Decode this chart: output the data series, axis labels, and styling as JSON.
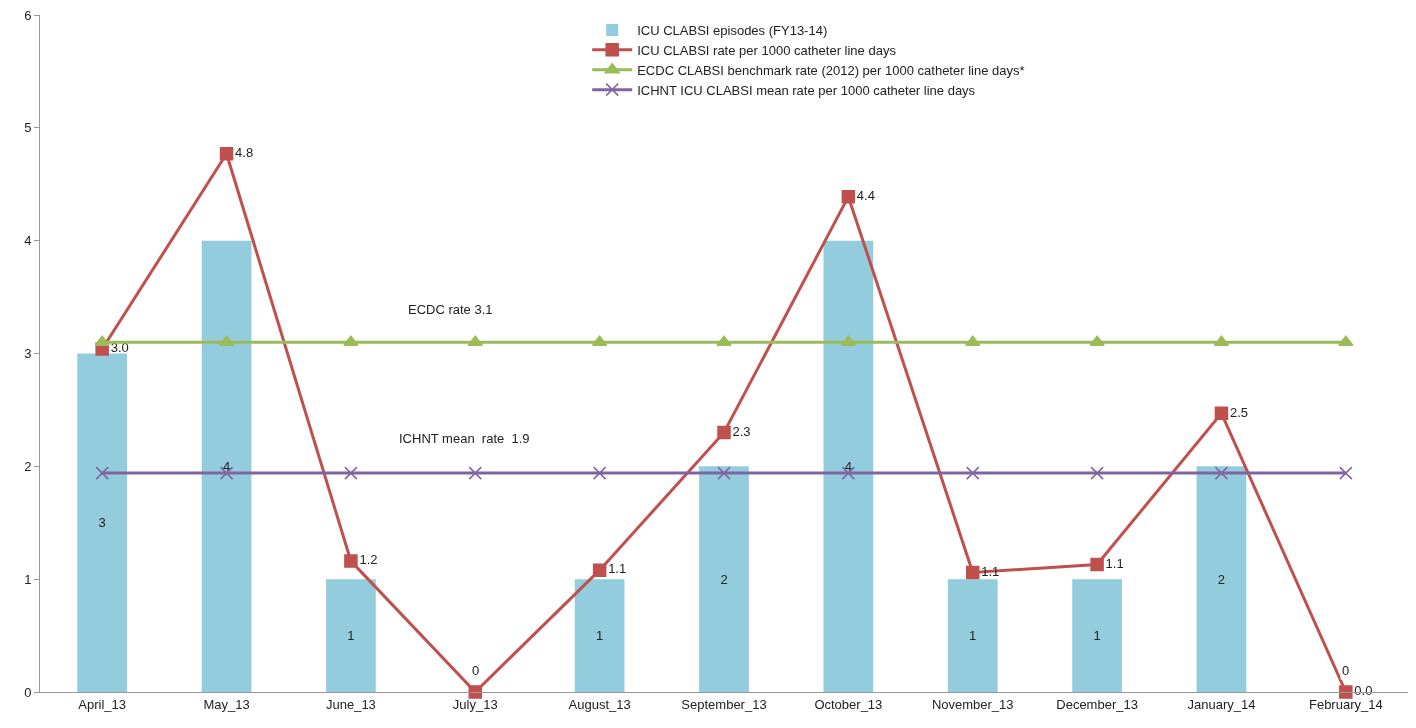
{
  "chart_data": {
    "type": "bar",
    "categories": [
      "April_13",
      "May_13",
      "June_13",
      "July_13",
      "August_13",
      "September_13",
      "October_13",
      "November_13",
      "December_13",
      "January_14",
      "February_14"
    ],
    "series": [
      {
        "name": "ICU CLABSI episodes (FY13-14)",
        "color": "#93cddd",
        "values": [
          3,
          4,
          1,
          0,
          1,
          2,
          4,
          1,
          1,
          2,
          0
        ],
        "value_labels": [
          "3",
          "4",
          "1",
          "0",
          "1",
          "2",
          "4",
          "1",
          "1",
          "2",
          "0"
        ]
      },
      {
        "name": "ICU CLABSI rate per 1000 catheter line days",
        "type": "line",
        "color": "#c0504d",
        "marker": "square",
        "values": [
          3.04,
          4.77,
          1.16,
          0,
          1.08,
          2.3,
          4.39,
          1.06,
          1.13,
          2.47,
          0
        ],
        "value_labels": [
          "3.0",
          "4.8",
          "1.2",
          null,
          "1.1",
          "2.3",
          "4.4",
          "1.1",
          "1.1",
          "2.5",
          "0.0"
        ]
      },
      {
        "name": "ECDC CLABSI benchmark rate (2012) per 1000 catheter line days*",
        "type": "line",
        "color": "#9bbb59",
        "marker": "triangle",
        "values": [
          3.1,
          3.1,
          3.1,
          3.1,
          3.1,
          3.1,
          3.1,
          3.1,
          3.1,
          3.1,
          3.1
        ]
      },
      {
        "name": "ICHNT ICU CLABSI mean rate per 1000 catheter line days",
        "type": "line",
        "color": "#8064a2",
        "marker": "cross",
        "values": [
          1.94,
          1.94,
          1.94,
          1.94,
          1.94,
          1.94,
          1.94,
          1.94,
          1.94,
          1.94,
          1.94
        ]
      }
    ],
    "annotations": [
      "ECDC rate 3.1",
      "ICHNT mean  rate  1.9"
    ],
    "ylim": [
      0,
      6
    ],
    "yticks": [
      0,
      1,
      2,
      3,
      4,
      5,
      6
    ],
    "grid": false,
    "legend": "top"
  }
}
